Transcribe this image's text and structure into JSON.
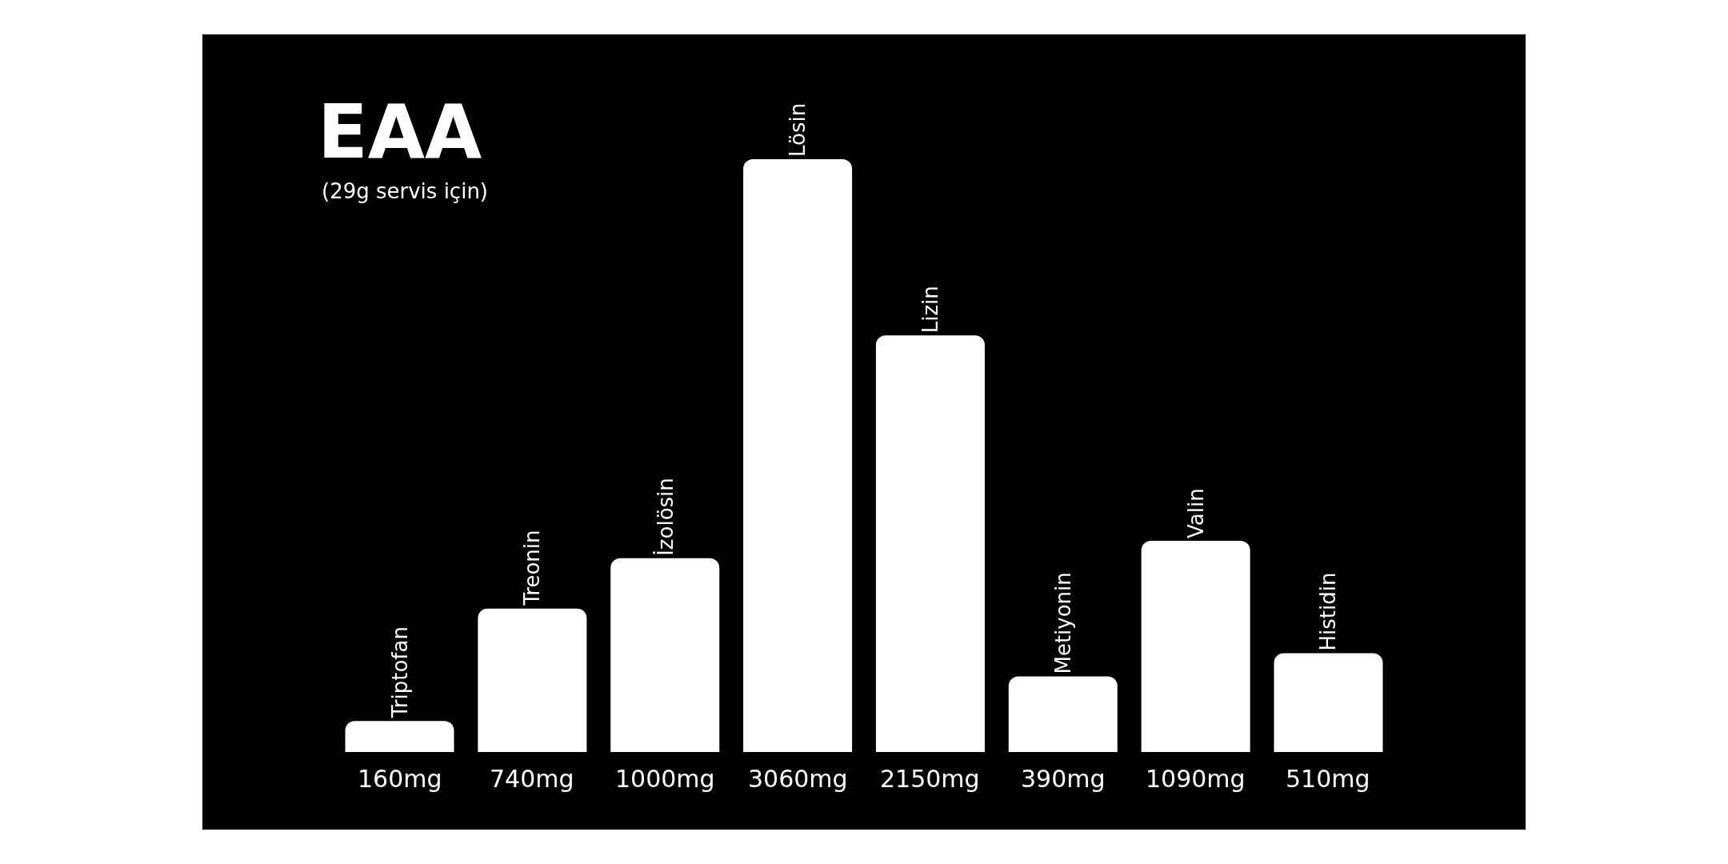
{
  "chart_data": {
    "type": "bar",
    "title": "EAA",
    "subtitle": "(29g servis için)",
    "categories": [
      "Triptofan",
      "Treonin",
      "İzolösin",
      "Lösin",
      "Lizin",
      "Metiyonin",
      "Valin",
      "Histidin"
    ],
    "values": [
      160,
      740,
      1000,
      3060,
      2150,
      390,
      1090,
      510
    ],
    "value_labels": [
      "160mg",
      "740mg",
      "1000mg",
      "3060mg",
      "2150mg",
      "390mg",
      "1090mg",
      "510mg"
    ],
    "color": "#ffffff",
    "grid": false,
    "legend": false
  }
}
